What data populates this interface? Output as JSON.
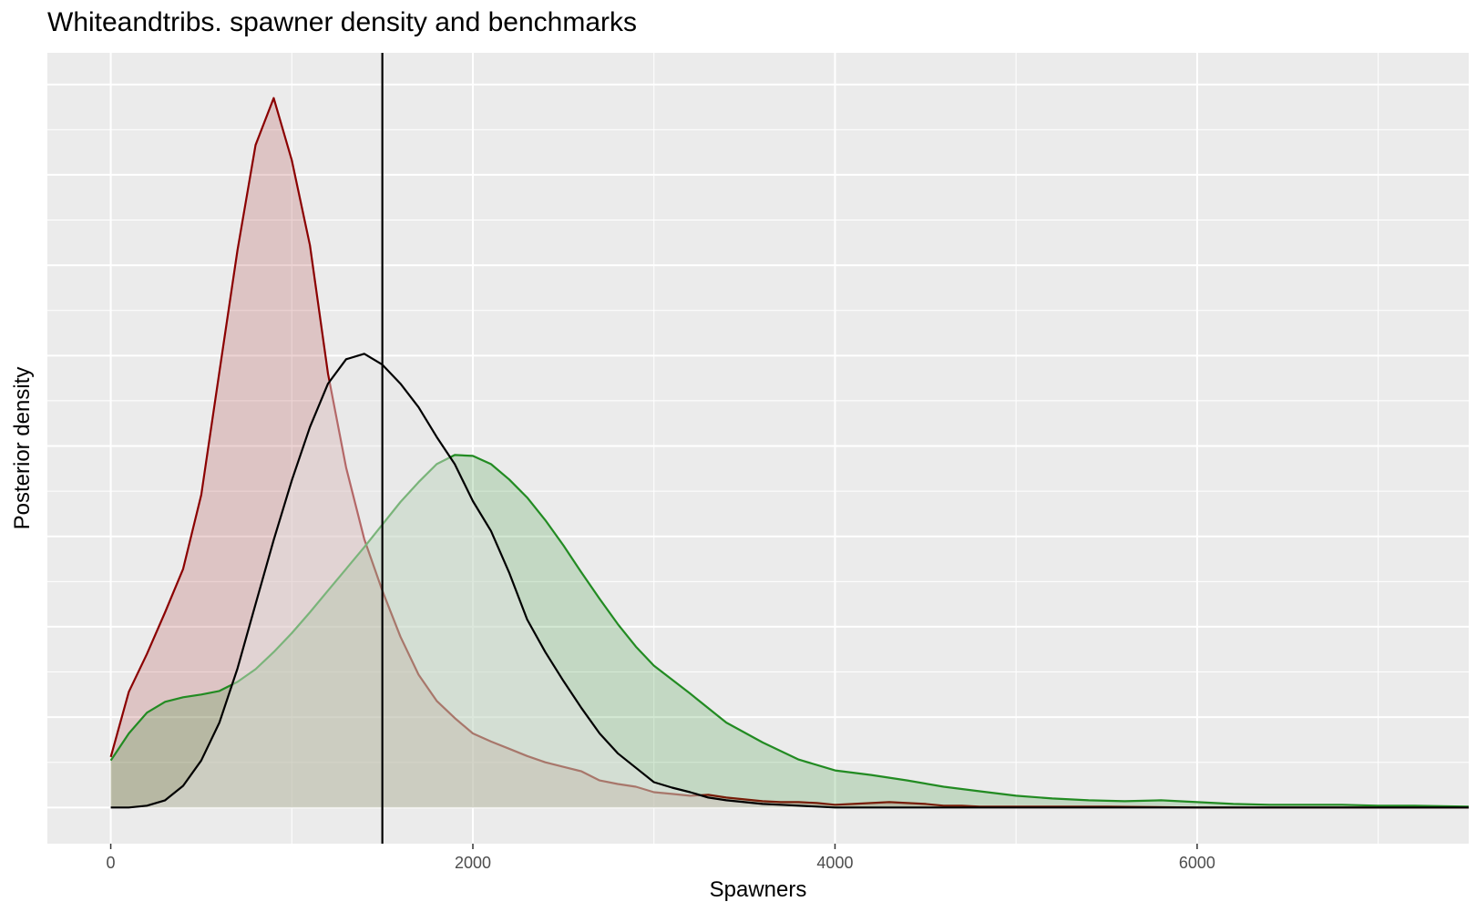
{
  "chart_data": {
    "type": "area",
    "title": "Whiteandtribs. spawner density and benchmarks",
    "xlabel": "Spawners",
    "ylabel": "Posterior density",
    "xlim": [
      -350,
      7500
    ],
    "ylim": [
      -0.04,
      0.835
    ],
    "x_ticks": [
      0,
      2000,
      4000,
      6000
    ],
    "x_tick_labels": [
      "0",
      "2000",
      "4000",
      "6000"
    ],
    "y_gridlines": [
      0,
      0.1,
      0.2,
      0.3,
      0.4,
      0.5,
      0.6,
      0.7,
      0.8
    ],
    "y_tick_labels_shown": false,
    "grid": true,
    "background": "#ebebeb",
    "benchmark_line": {
      "x": 1500,
      "color": "#000000"
    },
    "series": [
      {
        "color": "#8b0000",
        "fill": "rgba(165, 42, 42, 0.2)",
        "x": [
          0,
          100,
          200,
          300,
          400,
          500,
          600,
          700,
          800,
          900,
          1000,
          1100,
          1200,
          1300,
          1400,
          1500,
          1600,
          1700,
          1800,
          1900,
          2000,
          2100,
          2200,
          2300,
          2400,
          2500,
          2600,
          2700,
          2800,
          2900,
          3000,
          3100,
          3200,
          3300,
          3400,
          3500,
          3600,
          3700,
          3800,
          3900,
          4000,
          4100,
          4200,
          4300,
          4400,
          4500,
          4600,
          4700,
          4800,
          5000,
          5500,
          6000,
          6500,
          7000,
          7500
        ],
        "y": [
          0.056,
          0.128,
          0.17,
          0.216,
          0.264,
          0.346,
          0.482,
          0.617,
          0.733,
          0.785,
          0.716,
          0.622,
          0.48,
          0.376,
          0.297,
          0.24,
          0.189,
          0.147,
          0.118,
          0.099,
          0.082,
          0.073,
          0.065,
          0.057,
          0.05,
          0.045,
          0.04,
          0.03,
          0.026,
          0.023,
          0.017,
          0.015,
          0.013,
          0.014,
          0.011,
          0.009,
          0.007,
          0.006,
          0.006,
          0.005,
          0.003,
          0.004,
          0.005,
          0.006,
          0.005,
          0.004,
          0.002,
          0.002,
          0.001,
          0.001,
          0.001,
          0.0,
          0.0,
          0.0,
          0.0
        ]
      },
      {
        "color": "#228b22",
        "fill": "rgba(34, 139, 34, 0.2)",
        "x": [
          0,
          100,
          200,
          300,
          400,
          500,
          600,
          700,
          800,
          900,
          1000,
          1100,
          1200,
          1300,
          1400,
          1500,
          1600,
          1700,
          1800,
          1900,
          2000,
          2100,
          2200,
          2300,
          2400,
          2500,
          2600,
          2700,
          2800,
          2900,
          3000,
          3200,
          3400,
          3600,
          3800,
          4000,
          4200,
          4400,
          4600,
          4800,
          5000,
          5200,
          5400,
          5600,
          5800,
          6000,
          6200,
          6400,
          6600,
          6800,
          7000,
          7200,
          7500
        ],
        "y": [
          0.052,
          0.082,
          0.105,
          0.117,
          0.122,
          0.125,
          0.129,
          0.139,
          0.153,
          0.172,
          0.193,
          0.216,
          0.24,
          0.264,
          0.288,
          0.313,
          0.338,
          0.36,
          0.38,
          0.39,
          0.389,
          0.38,
          0.363,
          0.343,
          0.318,
          0.29,
          0.26,
          0.231,
          0.203,
          0.178,
          0.157,
          0.126,
          0.094,
          0.072,
          0.053,
          0.041,
          0.036,
          0.03,
          0.023,
          0.018,
          0.013,
          0.01,
          0.008,
          0.007,
          0.008,
          0.006,
          0.004,
          0.003,
          0.003,
          0.003,
          0.002,
          0.002,
          0.001
        ]
      },
      {
        "color": "#000000",
        "fill": "rgba(230, 230, 230, 0.45)",
        "x": [
          0,
          100,
          200,
          300,
          400,
          500,
          600,
          700,
          800,
          900,
          1000,
          1100,
          1200,
          1300,
          1400,
          1500,
          1600,
          1700,
          1800,
          1900,
          2000,
          2100,
          2200,
          2300,
          2400,
          2500,
          2600,
          2700,
          2800,
          2900,
          3000,
          3100,
          3200,
          3300,
          3400,
          3500,
          3600,
          3700,
          3800,
          3900,
          4000,
          4200,
          4400,
          4600,
          5000,
          5500,
          6000,
          6500,
          7000,
          7500
        ],
        "y": [
          0.0,
          0.0,
          0.002,
          0.008,
          0.024,
          0.052,
          0.094,
          0.154,
          0.225,
          0.296,
          0.362,
          0.421,
          0.469,
          0.496,
          0.502,
          0.49,
          0.469,
          0.443,
          0.41,
          0.38,
          0.339,
          0.306,
          0.26,
          0.208,
          0.172,
          0.14,
          0.11,
          0.082,
          0.06,
          0.044,
          0.028,
          0.022,
          0.017,
          0.011,
          0.008,
          0.006,
          0.004,
          0.003,
          0.002,
          0.001,
          0.0,
          0.0,
          0.0,
          0.0,
          0.0,
          0.0,
          0.0,
          0.0,
          0.0,
          0.0
        ]
      }
    ]
  }
}
